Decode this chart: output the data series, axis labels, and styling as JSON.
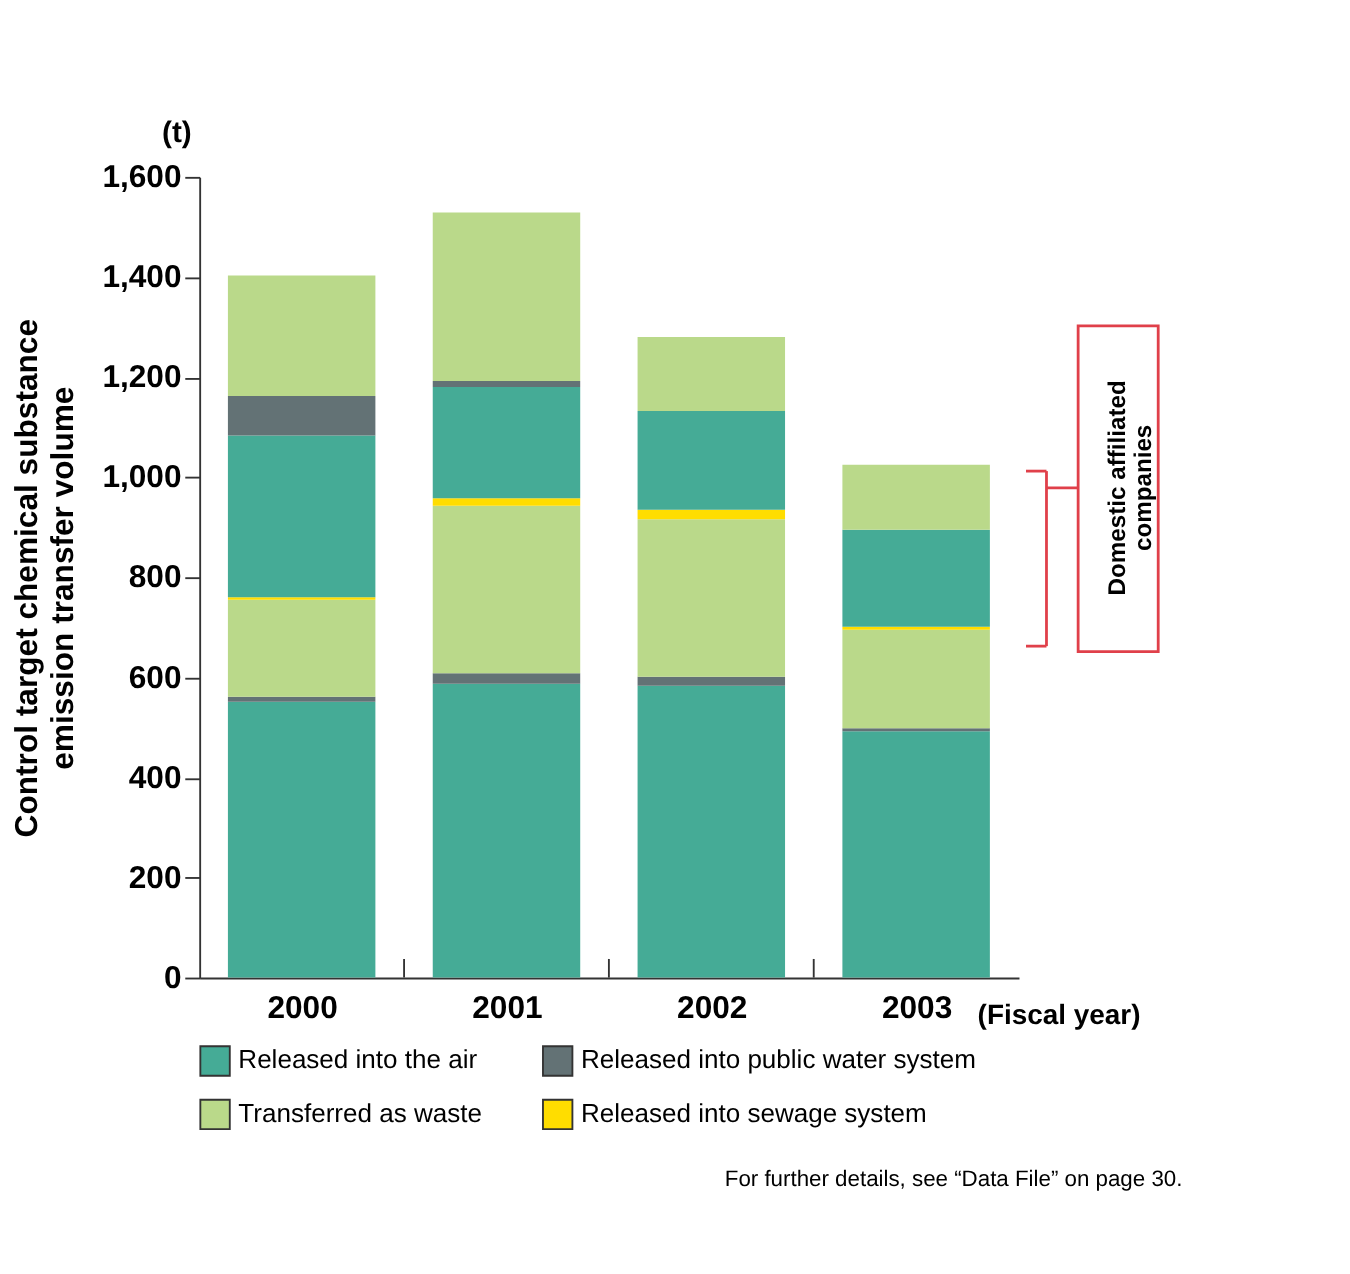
{
  "chart_data": {
    "type": "bar",
    "stacked": true,
    "xlabel": "(Fiscal year)",
    "ylabel": "Control target chemical substance emission transfer volume",
    "categories": [
      "2000",
      "2001",
      "2002",
      "2003"
    ],
    "series": [
      {
        "name": "Released into the air",
        "color": "#45ab96",
        "values": [
          551,
          587,
          583,
          492
        ]
      },
      {
        "name": "Released into public water system",
        "color": "#637275",
        "values": [
          10,
          21,
          18,
          6
        ]
      },
      {
        "name": "Transferred as waste",
        "color": "#bad98a",
        "values": [
          194,
          335,
          315,
          197
        ]
      },
      {
        "name": "Released into sewage system",
        "color": "#ffdd00",
        "values": [
          5,
          15,
          19,
          6
        ]
      },
      {
        "color": "#45ab96",
        "values": [
          323,
          222,
          197,
          194
        ]
      },
      {
        "color": "#637275",
        "values": [
          79,
          12,
          0,
          0
        ]
      },
      {
        "color": "#bad98a",
        "values": [
          241,
          337,
          148,
          130
        ]
      }
    ],
    "ylim": [
      0,
      1600
    ],
    "yticks": [
      0,
      200,
      400,
      600,
      800,
      {
        "value": 1000,
        "label": "1,000"
      },
      {
        "value": 1200,
        "label": "1,200"
      },
      {
        "value": 1400,
        "label": "1,400"
      },
      {
        "value": 1600,
        "label": "1,600"
      }
    ],
    "grid": false,
    "legend": "bottom",
    "annotations": [
      "(t)",
      "Domestic affiliated companies",
      "For further details, see “Data File” on page 30."
    ]
  }
}
